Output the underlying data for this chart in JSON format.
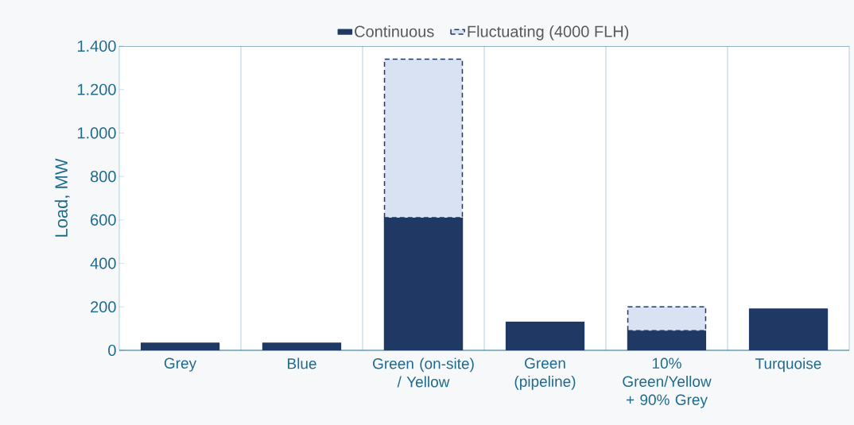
{
  "chart_data": {
    "type": "bar",
    "stacked": true,
    "ylabel": "Load, MW",
    "categories": [
      "Grey",
      "Blue",
      "Green (on-site) / Yellow",
      "Green (pipeline)",
      "10% Green/Yellow + 90% Grey",
      "Turquoise"
    ],
    "series": [
      {
        "name": "Continuous",
        "color": "#1f3864",
        "values": [
          33,
          33,
          610,
          130,
          90,
          190
        ]
      },
      {
        "name": "Fluctuating (4000 FLH)",
        "color": "#d9e2f3",
        "line_style": "dashed",
        "values": [
          null,
          null,
          730,
          null,
          110,
          null
        ]
      }
    ],
    "ylim": [
      0,
      1400
    ],
    "yticks": [
      0,
      200,
      400,
      600,
      800,
      {
        "value": 1000,
        "label": "1.000"
      },
      {
        "value": 1200,
        "label": "1.200"
      },
      {
        "value": 1400,
        "label": "1.400"
      }
    ],
    "grid": "x",
    "legend": "top"
  }
}
